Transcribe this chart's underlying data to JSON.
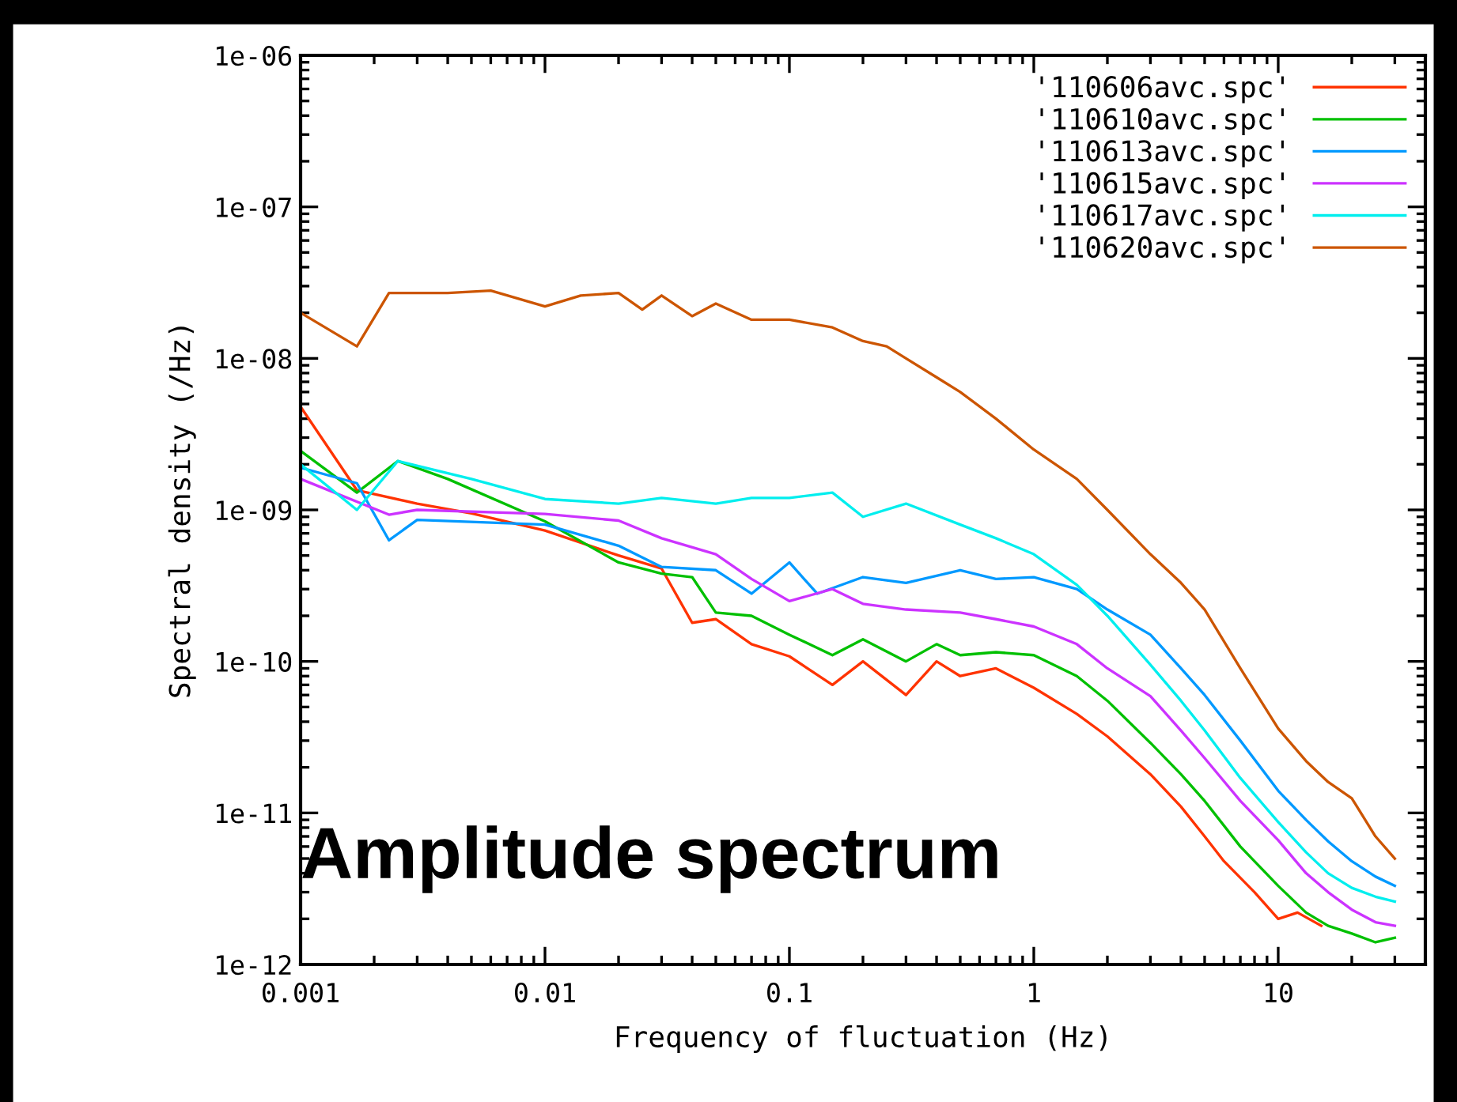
{
  "chart_data": {
    "type": "line",
    "xlabel": "Frequency of fluctuation (Hz)",
    "ylabel": "Spectral density (/Hz)",
    "log": "xy",
    "xlim": [
      0.001,
      40
    ],
    "xticks": [
      0.001,
      0.01,
      0.1,
      1,
      10
    ],
    "ylim": [
      1e-12,
      1e-06
    ],
    "yticks": [
      {
        "value": 1e-12,
        "label": "1e-12"
      },
      {
        "value": 1e-11,
        "label": "1e-11"
      },
      {
        "value": 1e-10,
        "label": "1e-10"
      },
      {
        "value": 1e-09,
        "label": "1e-09"
      },
      {
        "value": 1e-08,
        "label": "1e-08"
      },
      {
        "value": 1e-07,
        "label": "1e-07"
      },
      {
        "value": 1e-06,
        "label": "1e-06"
      }
    ],
    "grid": false,
    "legend": "top right",
    "line_style": "solid",
    "marker": "none",
    "annotations": [
      "Amplitude spectrum"
    ],
    "series": [
      {
        "name": "'110606avc.spc'",
        "color": "#ff3300",
        "x": [
          0.001,
          0.0017,
          0.003,
          0.005,
          0.01,
          0.02,
          0.03,
          0.04,
          0.05,
          0.07,
          0.1,
          0.15,
          0.2,
          0.3,
          0.4,
          0.5,
          0.7,
          1,
          1.5,
          2,
          3,
          4,
          5,
          6,
          8,
          10,
          12,
          15
        ],
        "values": [
          4.8e-09,
          1.35e-09,
          1.1e-09,
          9.5e-10,
          7.3e-10,
          5e-10,
          4.1e-10,
          1.8e-10,
          1.9e-10,
          1.3e-10,
          1.08e-10,
          7e-11,
          1e-10,
          6e-11,
          1e-10,
          8e-11,
          9e-11,
          6.7e-11,
          4.5e-11,
          3.2e-11,
          1.8e-11,
          1.1e-11,
          7e-12,
          4.8e-12,
          3e-12,
          2e-12,
          2.2e-12,
          1.8e-12
        ]
      },
      {
        "name": "'110610avc.spc'",
        "color": "#00c000",
        "x": [
          0.001,
          0.0017,
          0.0025,
          0.004,
          0.01,
          0.02,
          0.03,
          0.04,
          0.05,
          0.07,
          0.1,
          0.15,
          0.2,
          0.3,
          0.4,
          0.5,
          0.7,
          1,
          1.5,
          2,
          3,
          4,
          5,
          7,
          10,
          13,
          16,
          20,
          25,
          30
        ],
        "values": [
          2.45e-09,
          1.3e-09,
          2.1e-09,
          1.6e-09,
          8.4e-10,
          4.5e-10,
          3.8e-10,
          3.6e-10,
          2.1e-10,
          2e-10,
          1.5e-10,
          1.1e-10,
          1.4e-10,
          1e-10,
          1.3e-10,
          1.1e-10,
          1.15e-10,
          1.1e-10,
          8e-11,
          5.5e-11,
          2.9e-11,
          1.8e-11,
          1.2e-11,
          6e-12,
          3.3e-12,
          2.2e-12,
          1.8e-12,
          1.6e-12,
          1.4e-12,
          1.5e-12
        ]
      },
      {
        "name": "'110613avc.spc'",
        "color": "#0099ff",
        "x": [
          0.001,
          0.0017,
          0.0023,
          0.003,
          0.01,
          0.02,
          0.03,
          0.05,
          0.07,
          0.1,
          0.13,
          0.2,
          0.3,
          0.5,
          0.7,
          1,
          1.5,
          2,
          3,
          4,
          5,
          7,
          10,
          13,
          16,
          20,
          25,
          30
        ],
        "values": [
          1.9e-09,
          1.5e-09,
          6.3e-10,
          8.6e-10,
          8e-10,
          5.8e-10,
          4.2e-10,
          4e-10,
          2.8e-10,
          4.5e-10,
          2.8e-10,
          3.6e-10,
          3.3e-10,
          4e-10,
          3.5e-10,
          3.6e-10,
          3e-10,
          2.2e-10,
          1.5e-10,
          9e-11,
          6e-11,
          3e-11,
          1.4e-11,
          9e-12,
          6.5e-12,
          4.8e-12,
          3.8e-12,
          3.3e-12
        ]
      },
      {
        "name": "'110615avc.spc'",
        "color": "#cc33ff",
        "x": [
          0.001,
          0.0023,
          0.003,
          0.01,
          0.02,
          0.03,
          0.05,
          0.07,
          0.1,
          0.15,
          0.2,
          0.3,
          0.5,
          0.7,
          1,
          1.5,
          2,
          3,
          4,
          5,
          7,
          10,
          13,
          16,
          20,
          25,
          30
        ],
        "values": [
          1.6e-09,
          9.3e-10,
          1e-09,
          9.4e-10,
          8.5e-10,
          6.5e-10,
          5.1e-10,
          3.5e-10,
          2.5e-10,
          3e-10,
          2.4e-10,
          2.2e-10,
          2.1e-10,
          1.9e-10,
          1.7e-10,
          1.3e-10,
          9e-11,
          5.9e-11,
          3.5e-11,
          2.3e-11,
          1.2e-11,
          6.6e-12,
          4e-12,
          3e-12,
          2.3e-12,
          1.9e-12,
          1.8e-12
        ]
      },
      {
        "name": "'110617avc.spc'",
        "color": "#00eeee",
        "x": [
          0.001,
          0.0017,
          0.0025,
          0.005,
          0.01,
          0.02,
          0.03,
          0.05,
          0.07,
          0.1,
          0.15,
          0.2,
          0.3,
          0.5,
          0.7,
          1,
          1.5,
          2,
          3,
          4,
          5,
          7,
          10,
          13,
          16,
          20,
          25,
          30
        ],
        "values": [
          2e-09,
          1e-09,
          2.1e-09,
          1.6e-09,
          1.18e-09,
          1.1e-09,
          1.2e-09,
          1.1e-09,
          1.2e-09,
          1.2e-09,
          1.3e-09,
          9e-10,
          1.1e-09,
          8e-10,
          6.5e-10,
          5.1e-10,
          3.2e-10,
          2e-10,
          9.5e-11,
          5.5e-11,
          3.5e-11,
          1.7e-11,
          8.7e-12,
          5.5e-12,
          4e-12,
          3.2e-12,
          2.8e-12,
          2.6e-12
        ]
      },
      {
        "name": "'110620avc.spc'",
        "color": "#cc5500",
        "x": [
          0.001,
          0.0017,
          0.0023,
          0.004,
          0.006,
          0.01,
          0.014,
          0.02,
          0.025,
          0.03,
          0.04,
          0.05,
          0.07,
          0.1,
          0.15,
          0.2,
          0.25,
          0.3,
          0.4,
          0.5,
          0.7,
          1,
          1.5,
          2,
          3,
          4,
          5,
          7,
          10,
          13,
          16,
          20,
          25,
          30
        ],
        "values": [
          2e-08,
          1.2e-08,
          2.7e-08,
          2.7e-08,
          2.8e-08,
          2.2e-08,
          2.6e-08,
          2.7e-08,
          2.1e-08,
          2.6e-08,
          1.9e-08,
          2.3e-08,
          1.8e-08,
          1.8e-08,
          1.6e-08,
          1.3e-08,
          1.2e-08,
          1e-08,
          7.5e-09,
          6e-09,
          4e-09,
          2.5e-09,
          1.6e-09,
          1e-09,
          5.1e-10,
          3.3e-10,
          2.2e-10,
          9e-11,
          3.6e-11,
          2.2e-11,
          1.6e-11,
          1.25e-11,
          7e-12,
          5e-12
        ]
      }
    ]
  }
}
